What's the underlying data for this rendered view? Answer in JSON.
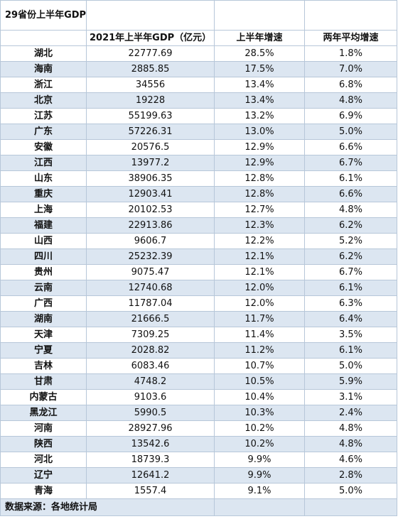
{
  "title": "29省份上半年GDP",
  "headers": {
    "province": "",
    "gdp": "2021年上半年GDP（亿元）",
    "growth": "上半年增速",
    "avg_growth": "两年平均增速"
  },
  "rows": [
    {
      "province": "湖北",
      "gdp": "22777.69",
      "growth": "28.5%",
      "avg": "1.8%"
    },
    {
      "province": "海南",
      "gdp": "2885.85",
      "growth": "17.5%",
      "avg": "7.0%"
    },
    {
      "province": "浙江",
      "gdp": "34556",
      "growth": "13.4%",
      "avg": "6.8%"
    },
    {
      "province": "北京",
      "gdp": "19228",
      "growth": "13.4%",
      "avg": "4.8%"
    },
    {
      "province": "江苏",
      "gdp": "55199.63",
      "growth": "13.2%",
      "avg": "6.9%"
    },
    {
      "province": "广东",
      "gdp": "57226.31",
      "growth": "13.0%",
      "avg": "5.0%"
    },
    {
      "province": "安徽",
      "gdp": "20576.5",
      "growth": "12.9%",
      "avg": "6.6%"
    },
    {
      "province": "江西",
      "gdp": "13977.2",
      "growth": "12.9%",
      "avg": "6.7%"
    },
    {
      "province": "山东",
      "gdp": "38906.35",
      "growth": "12.8%",
      "avg": "6.1%"
    },
    {
      "province": "重庆",
      "gdp": "12903.41",
      "growth": "12.8%",
      "avg": "6.6%"
    },
    {
      "province": "上海",
      "gdp": "20102.53",
      "growth": "12.7%",
      "avg": "4.8%"
    },
    {
      "province": "福建",
      "gdp": "22913.86",
      "growth": "12.3%",
      "avg": "6.2%"
    },
    {
      "province": "山西",
      "gdp": "9606.7",
      "growth": "12.2%",
      "avg": "5.2%"
    },
    {
      "province": "四川",
      "gdp": "25232.39",
      "growth": "12.1%",
      "avg": "6.2%"
    },
    {
      "province": "贵州",
      "gdp": "9075.47",
      "growth": "12.1%",
      "avg": "6.7%"
    },
    {
      "province": "云南",
      "gdp": "12740.68",
      "growth": "12.0%",
      "avg": "6.1%"
    },
    {
      "province": "广西",
      "gdp": "11787.04",
      "growth": "12.0%",
      "avg": "6.3%"
    },
    {
      "province": "湖南",
      "gdp": "21666.5",
      "growth": "11.7%",
      "avg": "6.4%"
    },
    {
      "province": "天津",
      "gdp": "7309.25",
      "growth": "11.4%",
      "avg": "3.5%"
    },
    {
      "province": "宁夏",
      "gdp": "2028.82",
      "growth": "11.2%",
      "avg": "6.1%"
    },
    {
      "province": "吉林",
      "gdp": "6083.46",
      "growth": "10.7%",
      "avg": "5.0%"
    },
    {
      "province": "甘肃",
      "gdp": "4748.2",
      "growth": "10.5%",
      "avg": "5.9%"
    },
    {
      "province": "内蒙古",
      "gdp": "9103.6",
      "growth": "10.4%",
      "avg": "3.1%"
    },
    {
      "province": "黑龙江",
      "gdp": "5990.5",
      "growth": "10.3%",
      "avg": "2.4%"
    },
    {
      "province": "河南",
      "gdp": "28927.96",
      "growth": "10.2%",
      "avg": "4.8%"
    },
    {
      "province": "陕西",
      "gdp": "13542.6",
      "growth": "10.2%",
      "avg": "4.8%"
    },
    {
      "province": "河北",
      "gdp": "18739.3",
      "growth": "9.9%",
      "avg": "4.6%"
    },
    {
      "province": "辽宁",
      "gdp": "12641.2",
      "growth": "9.9%",
      "avg": "2.8%"
    },
    {
      "province": "青海",
      "gdp": "1557.4",
      "growth": "9.1%",
      "avg": "5.0%"
    }
  ],
  "source": "数据来源：各地统计局",
  "colors": {
    "stripe": "#dce6f1",
    "border": "#b7c7d9"
  }
}
